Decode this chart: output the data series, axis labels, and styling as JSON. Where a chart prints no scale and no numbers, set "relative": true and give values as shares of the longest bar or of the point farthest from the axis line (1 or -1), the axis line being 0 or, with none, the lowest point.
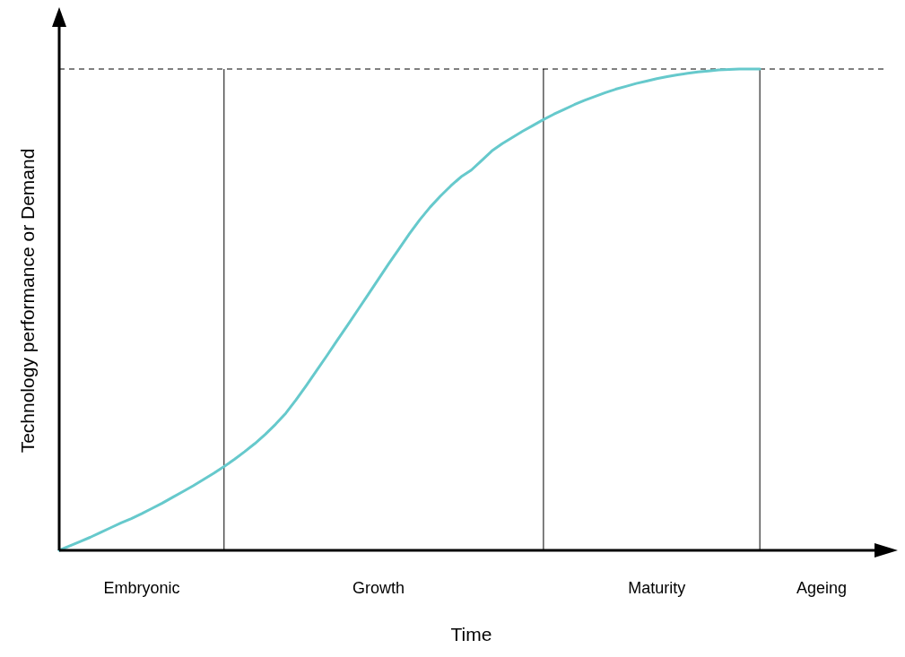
{
  "chart_data": {
    "type": "line",
    "relative": true,
    "xlabel": "Time",
    "ylabel": "Technology performance or Demand",
    "categories": [
      null,
      null,
      null,
      null,
      null,
      null,
      null,
      null,
      "Embryonic",
      null,
      null,
      null,
      null,
      null,
      null,
      null,
      null,
      null,
      null,
      null,
      null,
      null,
      null,
      null,
      null,
      null,
      null,
      null,
      null,
      null,
      null,
      "Growth",
      null,
      null,
      null,
      null,
      null,
      null,
      null,
      null,
      null,
      null,
      null,
      null,
      null,
      null,
      null,
      null,
      null,
      null,
      null,
      null,
      null,
      null,
      null,
      null,
      null,
      null,
      "Maturity",
      null,
      null,
      null,
      null,
      null,
      null,
      null,
      null,
      null,
      null,
      null,
      null,
      null,
      null,
      null,
      "Ageing",
      null,
      null,
      null,
      null,
      null,
      null
    ],
    "series": [
      {
        "color": "#66c9cc",
        "values": [
          0,
          0.009,
          0.018,
          0.027,
          0.037,
          0.047,
          0.057,
          0.066,
          0.076,
          0.087,
          0.098,
          0.11,
          0.122,
          0.134,
          0.147,
          0.16,
          0.174,
          0.189,
          0.205,
          0.222,
          0.241,
          0.262,
          0.285,
          0.313,
          0.343,
          0.374,
          0.405,
          0.437,
          0.468,
          0.5,
          0.532,
          0.564,
          0.596,
          0.627,
          0.658,
          0.687,
          0.713,
          0.736,
          0.757,
          0.776,
          0.79,
          0.81,
          0.83,
          0.845,
          0.858,
          0.871,
          0.883,
          0.895,
          0.906,
          0.916,
          0.926,
          0.935,
          0.943,
          0.951,
          0.958,
          0.964,
          0.97,
          0.975,
          0.98,
          0.984,
          0.988,
          0.991,
          0.994,
          0.996,
          0.998,
          0.999,
          1,
          1,
          1,
          null,
          null,
          null,
          null,
          null,
          null,
          null,
          null,
          null,
          null,
          null,
          null
        ]
      }
    ],
    "ref_lines": [
      {
        "axis": "y",
        "value": 1,
        "color": "#000000",
        "line_style": "dashed"
      }
    ]
  }
}
